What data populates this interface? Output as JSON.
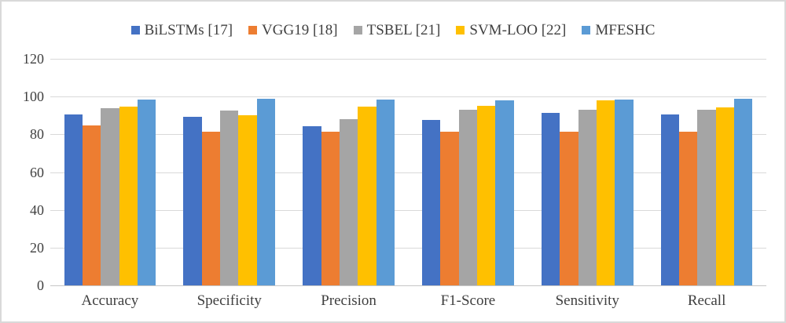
{
  "chart_data": {
    "type": "bar",
    "title": "",
    "xlabel": "",
    "ylabel": "",
    "categories": [
      "Accuracy",
      "Specificity",
      "Precision",
      "F1-Score",
      "Sensitivity",
      "Recall"
    ],
    "series": [
      {
        "name": "BiLSTMs [17]",
        "color": "#4472C4",
        "values": [
          90.5,
          89.2,
          84.5,
          87.5,
          91.5,
          90.4
        ]
      },
      {
        "name": "VGG19 [18]",
        "color": "#ED7D31",
        "values": [
          84.8,
          81.5,
          81.2,
          81.4,
          81.4,
          81.4
        ]
      },
      {
        "name": "TSBEL [21]",
        "color": "#A5A5A5",
        "values": [
          93.8,
          92.8,
          88.1,
          93.0,
          93.2,
          93.1
        ]
      },
      {
        "name": "SVM-LOO [22]",
        "color": "#FFC000",
        "values": [
          94.6,
          90.2,
          94.6,
          95.0,
          97.9,
          94.2
        ]
      },
      {
        "name": "MFESHC",
        "color": "#5B9BD5",
        "values": [
          98.3,
          98.9,
          98.3,
          98.1,
          98.5,
          98.8
        ]
      }
    ],
    "ylim": [
      0,
      120
    ],
    "yticks": [
      0,
      20,
      40,
      60,
      80,
      100,
      120
    ],
    "grid": true,
    "legend_position": "top",
    "colors": {
      "grid": "#d9d9d9",
      "axis": "#c6c6c6",
      "tick_text": "#404040",
      "frame_border": "#d9d9d9",
      "background": "#ffffff"
    }
  }
}
